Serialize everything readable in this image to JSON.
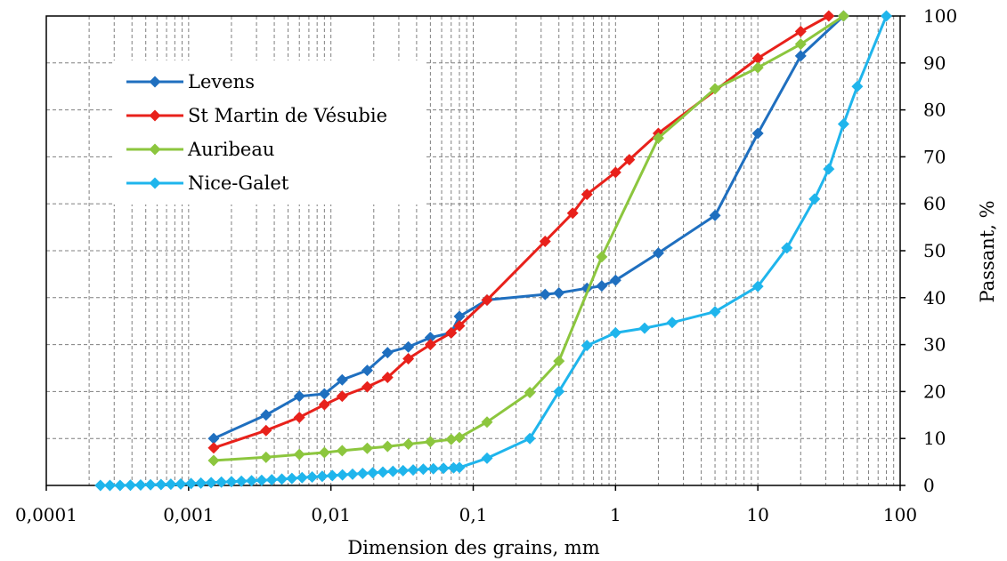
{
  "chart_data": {
    "type": "line",
    "xscale": "log",
    "xlim": [
      0.0001,
      100
    ],
    "ylim": [
      0,
      100
    ],
    "xlabel": "Dimension des grains, mm",
    "ylabel": "Passant, %",
    "x_tick_labels": [
      "0,0001",
      "0,001",
      "0,01",
      "0,1",
      "1",
      "10",
      "100"
    ],
    "y_tick_labels": [
      "0",
      "10",
      "20",
      "30",
      "40",
      "50",
      "60",
      "70",
      "80",
      "90",
      "100"
    ],
    "grid": true,
    "legend_position": "top-left",
    "series": [
      {
        "name": "Levens",
        "color": "#1f6fbf",
        "x": [
          0.0015,
          0.0035,
          0.006,
          0.009,
          0.012,
          0.018,
          0.025,
          0.035,
          0.05,
          0.07,
          0.08,
          0.125,
          0.32,
          0.4,
          0.63,
          0.8,
          1,
          2,
          5,
          10,
          20,
          40
        ],
        "y": [
          10,
          15,
          19,
          19.5,
          22.5,
          24.5,
          28.3,
          29.5,
          31.5,
          32.5,
          36,
          39.5,
          40.7,
          41,
          42,
          42.5,
          43.7,
          49.5,
          57.5,
          75,
          91.5,
          100
        ]
      },
      {
        "name": "St Martin de Vésubie",
        "color": "#e8211b",
        "x": [
          0.0015,
          0.0035,
          0.006,
          0.009,
          0.012,
          0.018,
          0.025,
          0.035,
          0.05,
          0.07,
          0.08,
          0.125,
          0.32,
          0.5,
          0.63,
          1,
          1.25,
          2,
          10,
          20,
          31.5
        ],
        "y": [
          8,
          11.7,
          14.5,
          17.2,
          19,
          21,
          23,
          27,
          30,
          32.5,
          34,
          39.5,
          52,
          58,
          62,
          66.7,
          69.4,
          75,
          91,
          96.7,
          100
        ]
      },
      {
        "name": "Auribeau",
        "color": "#8cc63e",
        "x": [
          0.0015,
          0.0035,
          0.006,
          0.009,
          0.012,
          0.018,
          0.025,
          0.035,
          0.05,
          0.07,
          0.08,
          0.125,
          0.25,
          0.4,
          0.8,
          2,
          5,
          10,
          20,
          40
        ],
        "y": [
          5.3,
          6,
          6.6,
          7,
          7.4,
          7.9,
          8.3,
          8.8,
          9.3,
          9.8,
          10.2,
          13.5,
          19.8,
          26.5,
          48.7,
          74,
          84.5,
          89,
          94,
          100
        ]
      },
      {
        "name": "Nice-Galet",
        "color": "#1fb5ec",
        "x": [
          0.00024,
          0.00028,
          0.00033,
          0.00039,
          0.00046,
          0.00054,
          0.00064,
          0.00075,
          0.00088,
          0.00104,
          0.00122,
          0.00144,
          0.0017,
          0.002,
          0.00235,
          0.00277,
          0.00326,
          0.00384,
          0.00452,
          0.00532,
          0.00627,
          0.00738,
          0.00869,
          0.01023,
          0.01205,
          0.01419,
          0.01671,
          0.01968,
          0.02317,
          0.02729,
          0.03213,
          0.03784,
          0.04456,
          0.05247,
          0.06179,
          0.07276,
          0.08,
          0.125,
          0.25,
          0.4,
          0.63,
          1,
          1.6,
          2.5,
          5,
          10,
          16,
          25,
          31.5,
          40,
          50,
          80
        ],
        "y": [
          0,
          0,
          0,
          0.05,
          0.1,
          0.15,
          0.2,
          0.25,
          0.3,
          0.4,
          0.5,
          0.6,
          0.7,
          0.8,
          0.9,
          1.0,
          1.1,
          1.2,
          1.35,
          1.5,
          1.65,
          1.8,
          1.95,
          2.1,
          2.25,
          2.4,
          2.55,
          2.7,
          2.85,
          3.0,
          3.15,
          3.3,
          3.45,
          3.55,
          3.65,
          3.75,
          3.8,
          5.8,
          10,
          20,
          29.8,
          32.5,
          33.5,
          34.7,
          37,
          42.4,
          50.6,
          61,
          67.4,
          77,
          85,
          100
        ]
      }
    ]
  }
}
